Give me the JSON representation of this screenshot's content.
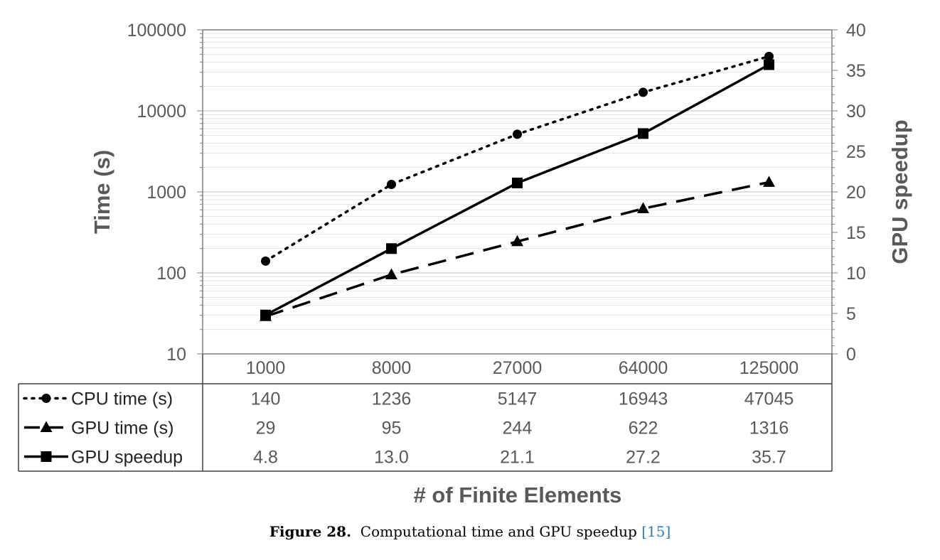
{
  "chart_data": {
    "type": "line",
    "xlabel": "# of Finite Elements",
    "ylabel_left": "Time (s)",
    "ylabel_right": "GPU speedup",
    "categories": [
      "1000",
      "8000",
      "27000",
      "64000",
      "125000"
    ],
    "y_left": {
      "scale": "log",
      "range": [
        10,
        100000
      ],
      "ticks": [
        "100000",
        "10000",
        "1000",
        "100",
        "10"
      ]
    },
    "y_right": {
      "scale": "linear",
      "range": [
        0,
        40
      ],
      "ticks": [
        "40",
        "35",
        "30",
        "25",
        "20",
        "15",
        "10",
        "5",
        "0"
      ]
    },
    "grid": true,
    "series": [
      {
        "name": "CPU time (s)",
        "axis": "left",
        "style": "dotted",
        "marker": "circle",
        "values": [
          140,
          1236,
          5147,
          16943,
          47045
        ],
        "labels": [
          "140",
          "1236",
          "5147",
          "16943",
          "47045"
        ]
      },
      {
        "name": "GPU time (s)",
        "axis": "left",
        "style": "dashed",
        "marker": "triangle",
        "values": [
          29,
          95,
          244,
          622,
          1316
        ],
        "labels": [
          "29",
          "95",
          "244",
          "622",
          "1316"
        ]
      },
      {
        "name": "GPU speedup",
        "axis": "right",
        "style": "solid",
        "marker": "square",
        "values": [
          4.8,
          13.0,
          21.1,
          27.2,
          35.7
        ],
        "labels": [
          "4.8",
          "13.0",
          "21.1",
          "27.2",
          "35.7"
        ]
      }
    ]
  },
  "caption": {
    "label": "Figure 28.",
    "text": "Computational time and GPU speedup",
    "reference": "[15]"
  }
}
